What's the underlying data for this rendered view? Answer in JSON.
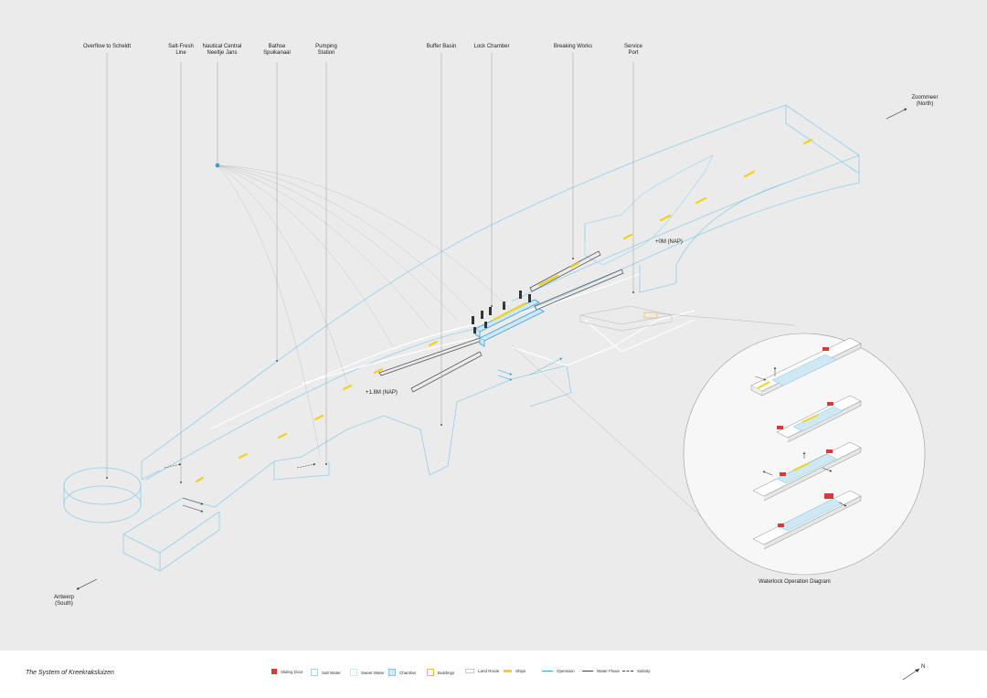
{
  "callouts": [
    {
      "text": "Overflow to Scheldt"
    },
    {
      "text": "Salt-Fresh\nLine"
    },
    {
      "text": "Nautical Central\nNeeltje Jans"
    },
    {
      "text": "Bathse\nSpuikanaal"
    },
    {
      "text": "Pumping\nStation"
    },
    {
      "text": "Buffer Basin"
    },
    {
      "text": "Lock Chamber"
    },
    {
      "text": "Breaking Works"
    },
    {
      "text": "Service\nPort"
    }
  ],
  "directions": {
    "north": "Zoommeer\n(North)",
    "south": "Antwerp\n(South)"
  },
  "levels": {
    "upper": "+0M (NAP)",
    "lower": "+1.8M (NAP)"
  },
  "diagram_title": "Waterlock Operation Diagram",
  "footer": {
    "title": "The System of Kreekraksluizen",
    "legend": [
      {
        "label": "Sliding Door",
        "color": "#d83a3a"
      },
      {
        "label": "Salt Water",
        "color": "#9fd4ee"
      },
      {
        "label": "Sweet Water",
        "color": "#cfe8f4"
      },
      {
        "label": "Chamber",
        "color": "#7cc9e4"
      },
      {
        "label": "Buildings",
        "color": "#f3b35a"
      },
      {
        "label": "Land Route",
        "color": "#c8c8c8"
      },
      {
        "label": "Ships",
        "color": "#f2d21b"
      },
      {
        "label": "Operation",
        "color": "#3aa0d8"
      },
      {
        "label": "Water Flows",
        "color": "#444444"
      },
      {
        "label": "Salinity",
        "color": "#444444"
      }
    ],
    "north_label": "N"
  },
  "colors": {
    "background": "#ebebeb",
    "water_outline": "#8fd0ec",
    "ship": "#f2d21b",
    "door": "#d83a3a"
  }
}
